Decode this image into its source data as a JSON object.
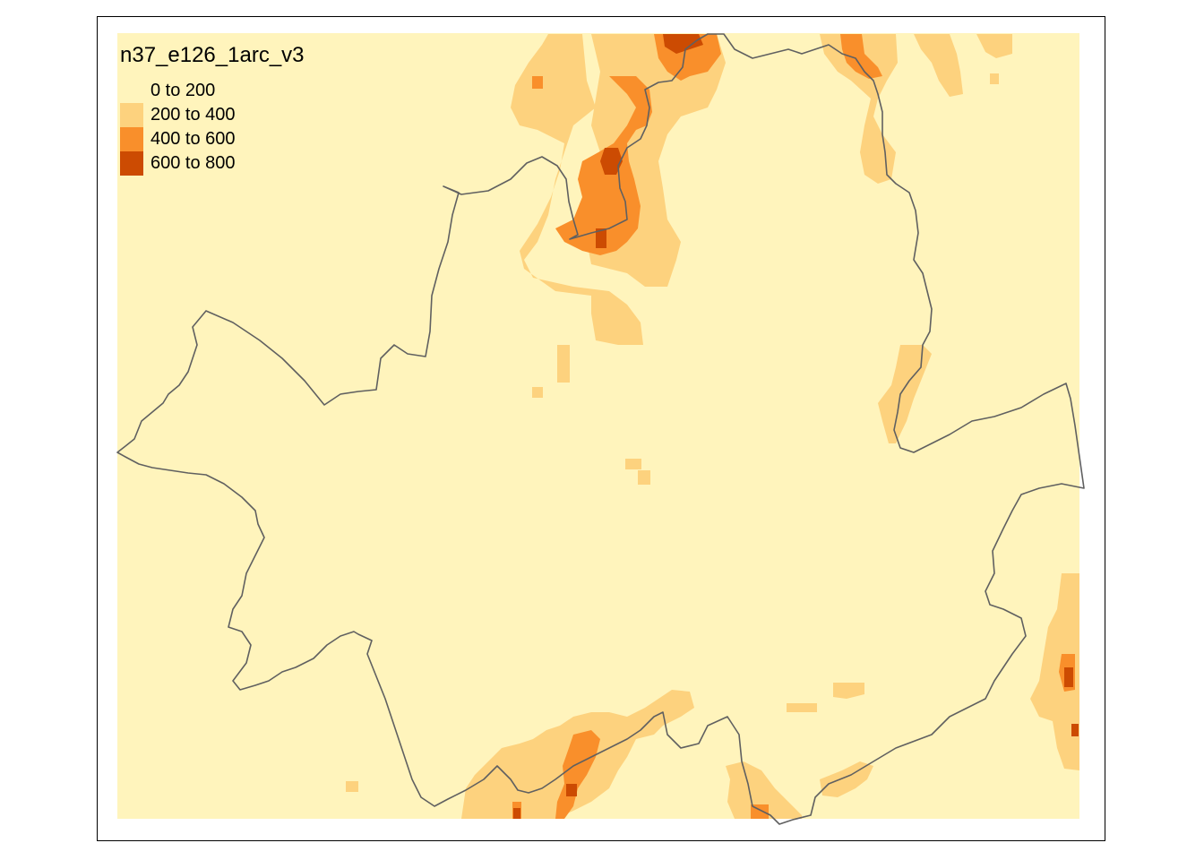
{
  "map": {
    "title": "n37_e126_1arc_v3",
    "legend": [
      {
        "label": "0 to 200",
        "color": "#fff4bc"
      },
      {
        "label": "200 to 400",
        "color": "#fdd27e"
      },
      {
        "label": "400 to 600",
        "color": "#f98f2b"
      },
      {
        "label": "600 to 800",
        "color": "#cc4b02"
      }
    ],
    "boundary_color": "#606060"
  }
}
